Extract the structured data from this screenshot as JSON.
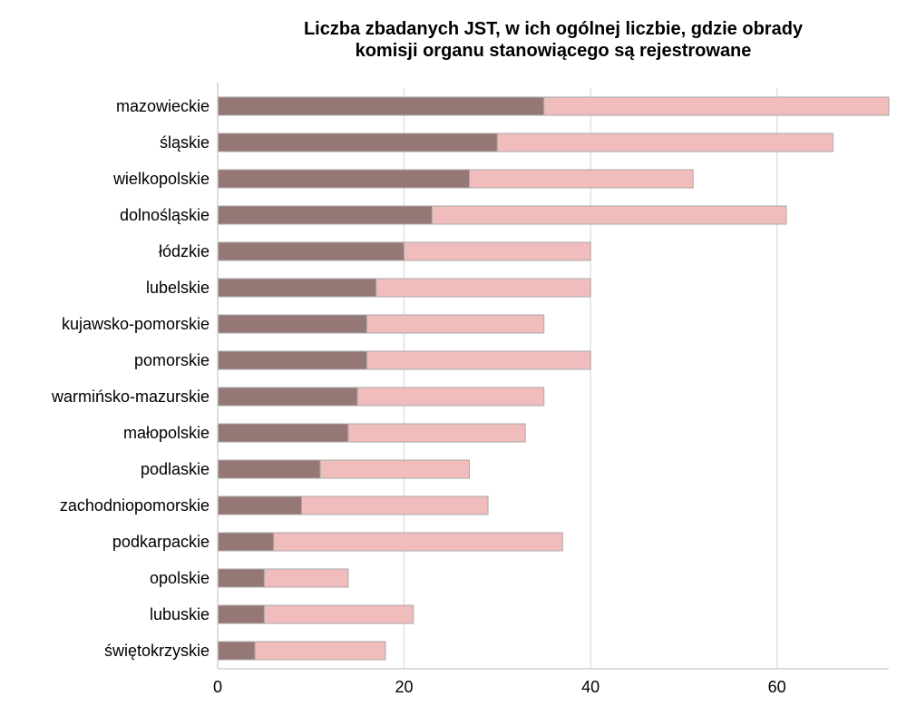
{
  "chart_data": {
    "type": "bar",
    "orientation": "horizontal",
    "stacked": true,
    "title_lines": [
      "Liczba zbadanych JST, w ich ogólnej liczbie, gdzie obrady",
      "komisji organu stanowiącego są rejestrowane"
    ],
    "xlabel": "",
    "ylabel": "",
    "xlim": [
      0,
      72
    ],
    "xticks": [
      0,
      20,
      40,
      60
    ],
    "grid": "vertical",
    "legend": "none",
    "categories": [
      "mazowieckie",
      "śląskie",
      "wielkopolskie",
      "dolnośląskie",
      "łódzkie",
      "lubelskie",
      "kujawsko-pomorskie",
      "pomorskie",
      "warmińsko-mazurskie",
      "małopolskie",
      "podlaskie",
      "zachodniopomorskie",
      "podkarpackie",
      "opolskie",
      "lubuskie",
      "świętokrzyskie"
    ],
    "series": [
      {
        "values": [
          35,
          30,
          27,
          23,
          20,
          17,
          16,
          16,
          15,
          14,
          11,
          9,
          6,
          5,
          5,
          4
        ]
      },
      {
        "values": [
          37,
          36,
          24,
          38,
          20,
          23,
          19,
          24,
          20,
          19,
          16,
          20,
          31,
          9,
          16,
          14
        ]
      }
    ],
    "colors": {
      "series": [
        "#957775",
        "#f0bcbc"
      ],
      "bar_border": "#aaaaaa",
      "grid": "#dddddd",
      "axis": "#cccccc"
    }
  }
}
